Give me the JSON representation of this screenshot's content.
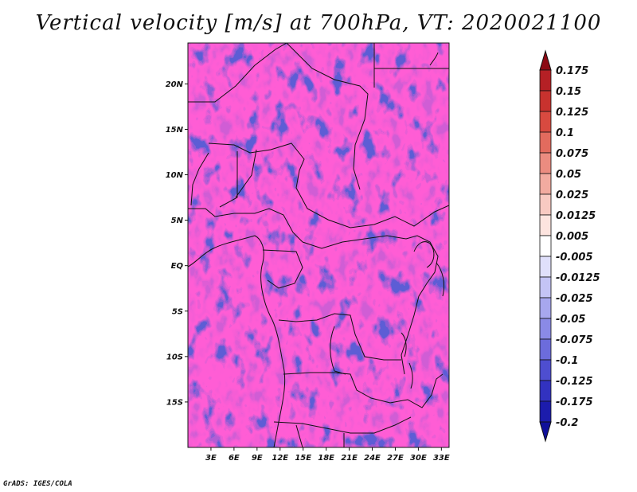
{
  "title": "Vertical velocity [m/s] at 700hPa, VT: 2020021100",
  "credit": "GrADS: IGES/COLA",
  "map": {
    "variable": "Vertical velocity",
    "units": "m/s",
    "level": "700hPa",
    "valid_time": "2020021100",
    "lat_range": [
      -20,
      24.5
    ],
    "lon_range": [
      0,
      34
    ],
    "lat_ticks": [
      {
        "value": 20,
        "label": "20N"
      },
      {
        "value": 15,
        "label": "15N"
      },
      {
        "value": 10,
        "label": "10N"
      },
      {
        "value": 5,
        "label": "5N"
      },
      {
        "value": 0,
        "label": "EQ"
      },
      {
        "value": -5,
        "label": "5S"
      },
      {
        "value": -10,
        "label": "10S"
      },
      {
        "value": -15,
        "label": "15S"
      }
    ],
    "lon_ticks": [
      {
        "value": 3,
        "label": "3E"
      },
      {
        "value": 6,
        "label": "6E"
      },
      {
        "value": 9,
        "label": "9E"
      },
      {
        "value": 12,
        "label": "12E"
      },
      {
        "value": 15,
        "label": "15E"
      },
      {
        "value": 18,
        "label": "18E"
      },
      {
        "value": 21,
        "label": "21E"
      },
      {
        "value": 24,
        "label": "24E"
      },
      {
        "value": 27,
        "label": "27E"
      },
      {
        "value": 30,
        "label": "30E"
      },
      {
        "value": 33,
        "label": "33E"
      }
    ]
  },
  "colorbar": {
    "levels": [
      {
        "label": "0.175",
        "color": "#a0141e"
      },
      {
        "label": "0.15",
        "color": "#b52025"
      },
      {
        "label": "0.125",
        "color": "#c8322e"
      },
      {
        "label": "0.1",
        "color": "#d84a40"
      },
      {
        "label": "0.075",
        "color": "#e26b5e"
      },
      {
        "label": "0.05",
        "color": "#eb8c80"
      },
      {
        "label": "0.025",
        "color": "#f2aba0"
      },
      {
        "label": "0.0125",
        "color": "#f8cac2"
      },
      {
        "label": "0.005",
        "color": "#fde4df"
      },
      {
        "label": "-0.005",
        "color": "#ffffff"
      },
      {
        "label": "-0.0125",
        "color": "#e0e0fb"
      },
      {
        "label": "-0.025",
        "color": "#c4c4f5"
      },
      {
        "label": "-0.05",
        "color": "#a7a7ee"
      },
      {
        "label": "-0.075",
        "color": "#8a8ae6"
      },
      {
        "label": "-0.1",
        "color": "#6c6cdc"
      },
      {
        "label": "-0.125",
        "color": "#4e4ed0"
      },
      {
        "label": "-0.175",
        "color": "#3232c0"
      },
      {
        "label": "-0.2",
        "color": "#1c1cac"
      }
    ],
    "top_arrow_color": "#8c0a14",
    "bottom_arrow_color": "#10109a"
  }
}
